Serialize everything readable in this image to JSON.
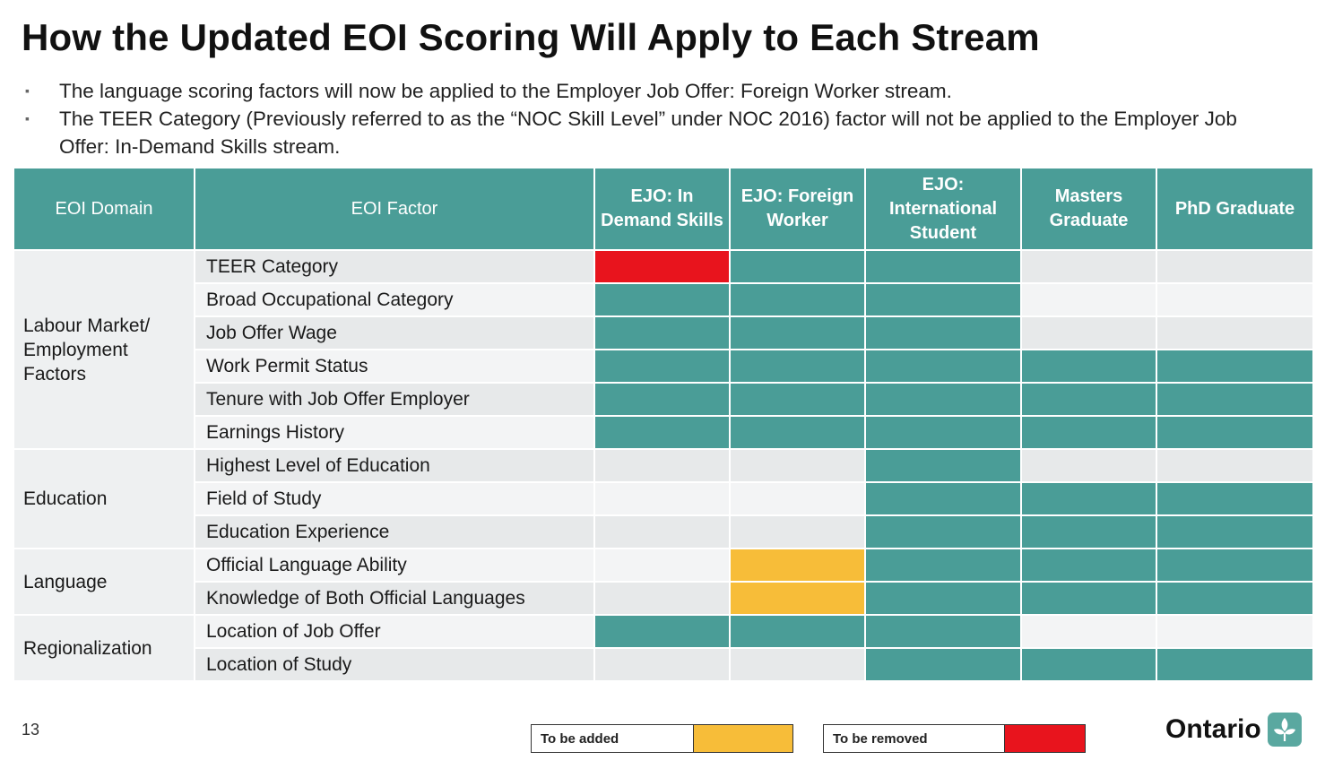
{
  "slide": {
    "title": "How the Updated EOI Scoring Will Apply to Each Stream",
    "bullets": [
      "The language scoring factors will now be applied to the Employer Job Offer: Foreign Worker stream.",
      "The TEER Category (Previously referred to as the “NOC Skill Level” under NOC 2016) factor will not be applied to the Employer Job Offer: In-Demand Skills stream."
    ],
    "page_number": "13",
    "logo_text": "Ontario"
  },
  "table": {
    "headers": {
      "domain": "EOI Domain",
      "factor": "EOI Factor",
      "streams": [
        "EJO: In Demand Skills",
        "EJO: Foreign Worker",
        "EJO: International Student",
        "Masters Graduate",
        "PhD Graduate"
      ]
    },
    "domains": [
      {
        "name": "Labour Market/ Employment Factors",
        "rows": 6
      },
      {
        "name": "Education",
        "rows": 3
      },
      {
        "name": "Language",
        "rows": 2
      },
      {
        "name": "Regionalization",
        "rows": 2
      }
    ],
    "rows": [
      {
        "factor": "TEER Category",
        "cells": [
          "removed",
          "applied",
          "applied",
          "none",
          "none"
        ]
      },
      {
        "factor": "Broad Occupational Category",
        "cells": [
          "applied",
          "applied",
          "applied",
          "none",
          "none"
        ]
      },
      {
        "factor": "Job Offer Wage",
        "cells": [
          "applied",
          "applied",
          "applied",
          "none",
          "none"
        ]
      },
      {
        "factor": "Work Permit Status",
        "cells": [
          "applied",
          "applied",
          "applied",
          "applied",
          "applied"
        ]
      },
      {
        "factor": "Tenure with Job Offer Employer",
        "cells": [
          "applied",
          "applied",
          "applied",
          "applied",
          "applied"
        ]
      },
      {
        "factor": "Earnings History",
        "cells": [
          "applied",
          "applied",
          "applied",
          "applied",
          "applied"
        ]
      },
      {
        "factor": "Highest Level of Education",
        "cells": [
          "none",
          "none",
          "applied",
          "none",
          "none"
        ]
      },
      {
        "factor": "Field of Study",
        "cells": [
          "none",
          "none",
          "applied",
          "applied",
          "applied"
        ]
      },
      {
        "factor": "Education Experience",
        "cells": [
          "none",
          "none",
          "applied",
          "applied",
          "applied"
        ]
      },
      {
        "factor": "Official Language Ability",
        "cells": [
          "none",
          "added",
          "applied",
          "applied",
          "applied"
        ]
      },
      {
        "factor": "Knowledge of Both Official Languages",
        "cells": [
          "none",
          "added",
          "applied",
          "applied",
          "applied"
        ]
      },
      {
        "factor": "Location of Job Offer",
        "cells": [
          "applied",
          "applied",
          "applied",
          "none",
          "none"
        ]
      },
      {
        "factor": "Location of Study",
        "cells": [
          "none",
          "none",
          "applied",
          "applied",
          "applied"
        ]
      }
    ]
  },
  "legend": {
    "added_label": "To be added",
    "removed_label": "To be removed"
  },
  "colors": {
    "applied": "#4a9d97",
    "removed": "#e8141d",
    "added": "#f7bd39"
  }
}
